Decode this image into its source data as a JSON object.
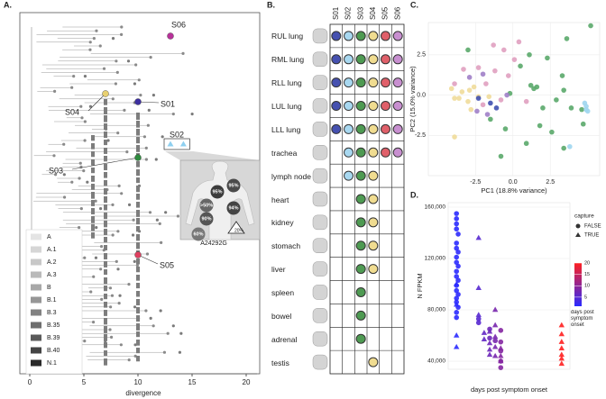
{
  "chart_data": [
    {
      "type": "tree",
      "panel_label": "A.",
      "xlabel": "divergence",
      "xlim": [
        0,
        21
      ],
      "xticks": [
        0,
        5,
        10,
        15,
        20
      ],
      "samples": [
        {
          "name": "S06",
          "x": [
            13
          ],
          "color": "#b8329a"
        },
        {
          "name": "S01",
          "x": [
            10
          ],
          "color": "#3d2fa0"
        },
        {
          "name": "S04",
          "x": [
            7
          ],
          "color": "#e8d070"
        },
        {
          "name": "S02",
          "x": [
            13,
            14.2
          ],
          "color": "#8fd0f0"
        },
        {
          "name": "S03",
          "x": [
            10
          ],
          "color": "#2e8b3e"
        },
        {
          "name": "S05",
          "x": [
            10
          ],
          "color": "#e04060"
        }
      ],
      "legend": {
        "labels": [
          "A",
          "A.1",
          "A.2",
          "A.3",
          "B",
          "B.1",
          "B.3",
          "B.35",
          "B.39",
          "B.40",
          "N.1"
        ],
        "colors": [
          "#e4e4e4",
          "#d6d6d6",
          "#c8c8c8",
          "#bababa",
          "#a8a8a8",
          "#969696",
          "#828282",
          "#6e6e6e",
          "#5a5a5a",
          "#444444",
          "#2a2a2a"
        ]
      },
      "inset": {
        "labels": [
          "95%",
          "95%",
          ">50%",
          "94%",
          "90%",
          "60%",
          "20%"
        ],
        "mutation": "A24292G"
      }
    },
    {
      "type": "dot-matrix",
      "panel_label": "B.",
      "series": [
        {
          "name": "S01",
          "color": "#4651b0"
        },
        {
          "name": "S02",
          "color": "#a8d8f0"
        },
        {
          "name": "S03",
          "color": "#4e9a52"
        },
        {
          "name": "S04",
          "color": "#f0dc90"
        },
        {
          "name": "S05",
          "color": "#e0606a"
        },
        {
          "name": "S06",
          "color": "#c88fd0"
        }
      ],
      "rows": [
        {
          "tissue": "RUL lung",
          "present": [
            true,
            true,
            true,
            true,
            true,
            true
          ]
        },
        {
          "tissue": "RML lung",
          "present": [
            true,
            true,
            true,
            true,
            true,
            true
          ]
        },
        {
          "tissue": "RLL lung",
          "present": [
            true,
            true,
            true,
            true,
            true,
            true
          ]
        },
        {
          "tissue": "LUL lung",
          "present": [
            true,
            true,
            true,
            true,
            true,
            true
          ]
        },
        {
          "tissue": "LLL lung",
          "present": [
            true,
            true,
            true,
            true,
            true,
            true
          ]
        },
        {
          "tissue": "trachea",
          "present": [
            false,
            true,
            true,
            true,
            true,
            true
          ]
        },
        {
          "tissue": "lymph node",
          "present": [
            false,
            true,
            true,
            true,
            false,
            false
          ]
        },
        {
          "tissue": "heart",
          "present": [
            false,
            false,
            true,
            true,
            false,
            false
          ]
        },
        {
          "tissue": "kidney",
          "present": [
            false,
            false,
            true,
            true,
            false,
            false
          ]
        },
        {
          "tissue": "stomach",
          "present": [
            false,
            false,
            true,
            true,
            false,
            false
          ]
        },
        {
          "tissue": "liver",
          "present": [
            false,
            false,
            true,
            true,
            false,
            false
          ]
        },
        {
          "tissue": "spleen",
          "present": [
            false,
            false,
            true,
            false,
            false,
            false
          ]
        },
        {
          "tissue": "bowel",
          "present": [
            false,
            false,
            true,
            false,
            false,
            false
          ]
        },
        {
          "tissue": "adrenal",
          "present": [
            false,
            false,
            true,
            false,
            false,
            false
          ]
        },
        {
          "tissue": "testis",
          "present": [
            false,
            false,
            false,
            true,
            false,
            false
          ]
        }
      ]
    },
    {
      "type": "scatter",
      "panel_label": "C.",
      "xlabel": "PC1 (18.8% variance)",
      "ylabel": "PC2 (15.0% variance)",
      "xlim": [
        -5.65,
        5.8
      ],
      "ylim": [
        -5,
        4.5
      ],
      "xticks": [
        -2.5,
        {
          "value": 0,
          "label": "0.0"
        },
        2.5
      ],
      "yticks": [
        -2.5,
        {
          "value": 0,
          "label": "0.0"
        },
        2.5
      ],
      "grid": true,
      "series": [
        {
          "color": "#5aa86a",
          "x": [
            5.2,
            3.6,
            1.1,
            2.3,
            0.5,
            3.3,
            1.6,
            1.4,
            1.2,
            3.4,
            -0.2,
            2.9,
            2.0,
            3.9,
            4.6,
            1.8,
            2.6,
            -0.5,
            -1.5,
            0.9,
            -0.8,
            3.4,
            4.7,
            -3.0
          ],
          "y": [
            4.3,
            3.5,
            2.5,
            2.3,
            1.8,
            1.2,
            0.5,
            0.4,
            0.6,
            0.3,
            0.1,
            -0.3,
            -0.8,
            -0.8,
            -0.9,
            -1.9,
            -2.3,
            -2.1,
            -1.5,
            -3.0,
            -3.8,
            -3.3,
            -1.8,
            2.8
          ]
        },
        {
          "color": "#e0a0c0",
          "x": [
            -1.3,
            -0.6,
            0.1,
            0.4,
            -2.3,
            -1.2,
            -0.3,
            -3.3,
            -3.9,
            -1.8,
            -0.8,
            0.9,
            -2.0
          ],
          "y": [
            3.1,
            2.8,
            2.2,
            3.3,
            1.7,
            1.5,
            1.2,
            1.6,
            0.7,
            0.7,
            -0.3,
            -0.4,
            -0.6
          ]
        },
        {
          "color": "#f0dc9a",
          "x": [
            -3.4,
            -3.6,
            -2.9,
            -2.6,
            -2.3,
            -3.0,
            -3.9,
            -4.1,
            -1.6,
            -3.9,
            -2.8
          ],
          "y": [
            0.2,
            -0.2,
            0.3,
            0.5,
            -0.1,
            -0.4,
            -0.2,
            0.4,
            -0.1,
            -2.6,
            -0.9
          ]
        },
        {
          "color": "#a080c8",
          "x": [
            -2.0,
            -0.4,
            -2.4,
            -1.7,
            -2.9
          ],
          "y": [
            1.3,
            0.0,
            -1.0,
            -1.2,
            1.1
          ]
        },
        {
          "color": "#4050b0",
          "x": [
            -2.3,
            -1.1,
            -1.5
          ],
          "y": [
            -0.2,
            -0.8,
            -0.5
          ]
        },
        {
          "color": "#9fd6ef",
          "x": [
            4.9,
            5.0,
            4.8,
            3.8,
            4.9
          ],
          "y": [
            -0.9,
            -1.0,
            -0.5,
            -3.2,
            -0.7
          ]
        }
      ]
    },
    {
      "type": "scatter-shape",
      "panel_label": "D.",
      "xlabel": "days post symptom onset",
      "ylabel": "N FPKM",
      "xlim": [
        -0.5,
        21.5
      ],
      "ylim": [
        33700,
        163500
      ],
      "yticks": [
        {
          "value": 40000,
          "label": "40,000"
        },
        {
          "value": 80000,
          "label": "80,000"
        },
        {
          "value": 120000,
          "label": "120,000"
        },
        {
          "value": 160000,
          "label": "160,000"
        }
      ],
      "grid": true,
      "legend_title": "capture",
      "colorbar": {
        "title": "days post symptom onset",
        "lim": [
          1,
          20
        ],
        "ticks": [
          5,
          10,
          15,
          20
        ],
        "color_low": "#2a2aff",
        "color_high": "#ff2020"
      },
      "series": [
        {
          "name": "FALSE",
          "shape": "circle",
          "x": [
            1,
            1,
            1,
            1,
            1.3,
            1,
            1,
            1.3,
            1,
            1,
            1.3,
            1,
            1,
            1.3,
            1,
            1,
            1.3,
            1,
            1,
            1.3,
            1,
            1,
            5,
            5,
            7,
            7,
            8,
            9,
            9,
            9,
            9,
            9
          ],
          "y": [
            155000,
            151000,
            147000,
            143000,
            139000,
            132000,
            128000,
            125000,
            121000,
            117000,
            114000,
            110000,
            106000,
            103000,
            99000,
            95000,
            92000,
            89000,
            86000,
            82000,
            78000,
            74000,
            73000,
            70000,
            65000,
            58000,
            56000,
            64000,
            55000,
            48000,
            40000,
            35000
          ]
        },
        {
          "name": "TRUE",
          "shape": "triangle",
          "x": [
            1,
            1,
            1,
            1,
            5,
            5,
            5,
            6,
            6,
            7,
            7,
            7,
            7,
            8,
            8,
            8,
            8,
            8,
            9,
            9,
            9,
            20,
            20,
            20,
            20,
            20,
            20,
            20
          ],
          "y": [
            100000,
            84000,
            60000,
            51000,
            136000,
            97000,
            76000,
            62000,
            57000,
            63000,
            54000,
            49000,
            45000,
            80000,
            68000,
            59000,
            51000,
            44000,
            50000,
            44000,
            40000,
            68000,
            61000,
            55000,
            50000,
            45000,
            42000,
            38000
          ]
        }
      ]
    }
  ]
}
